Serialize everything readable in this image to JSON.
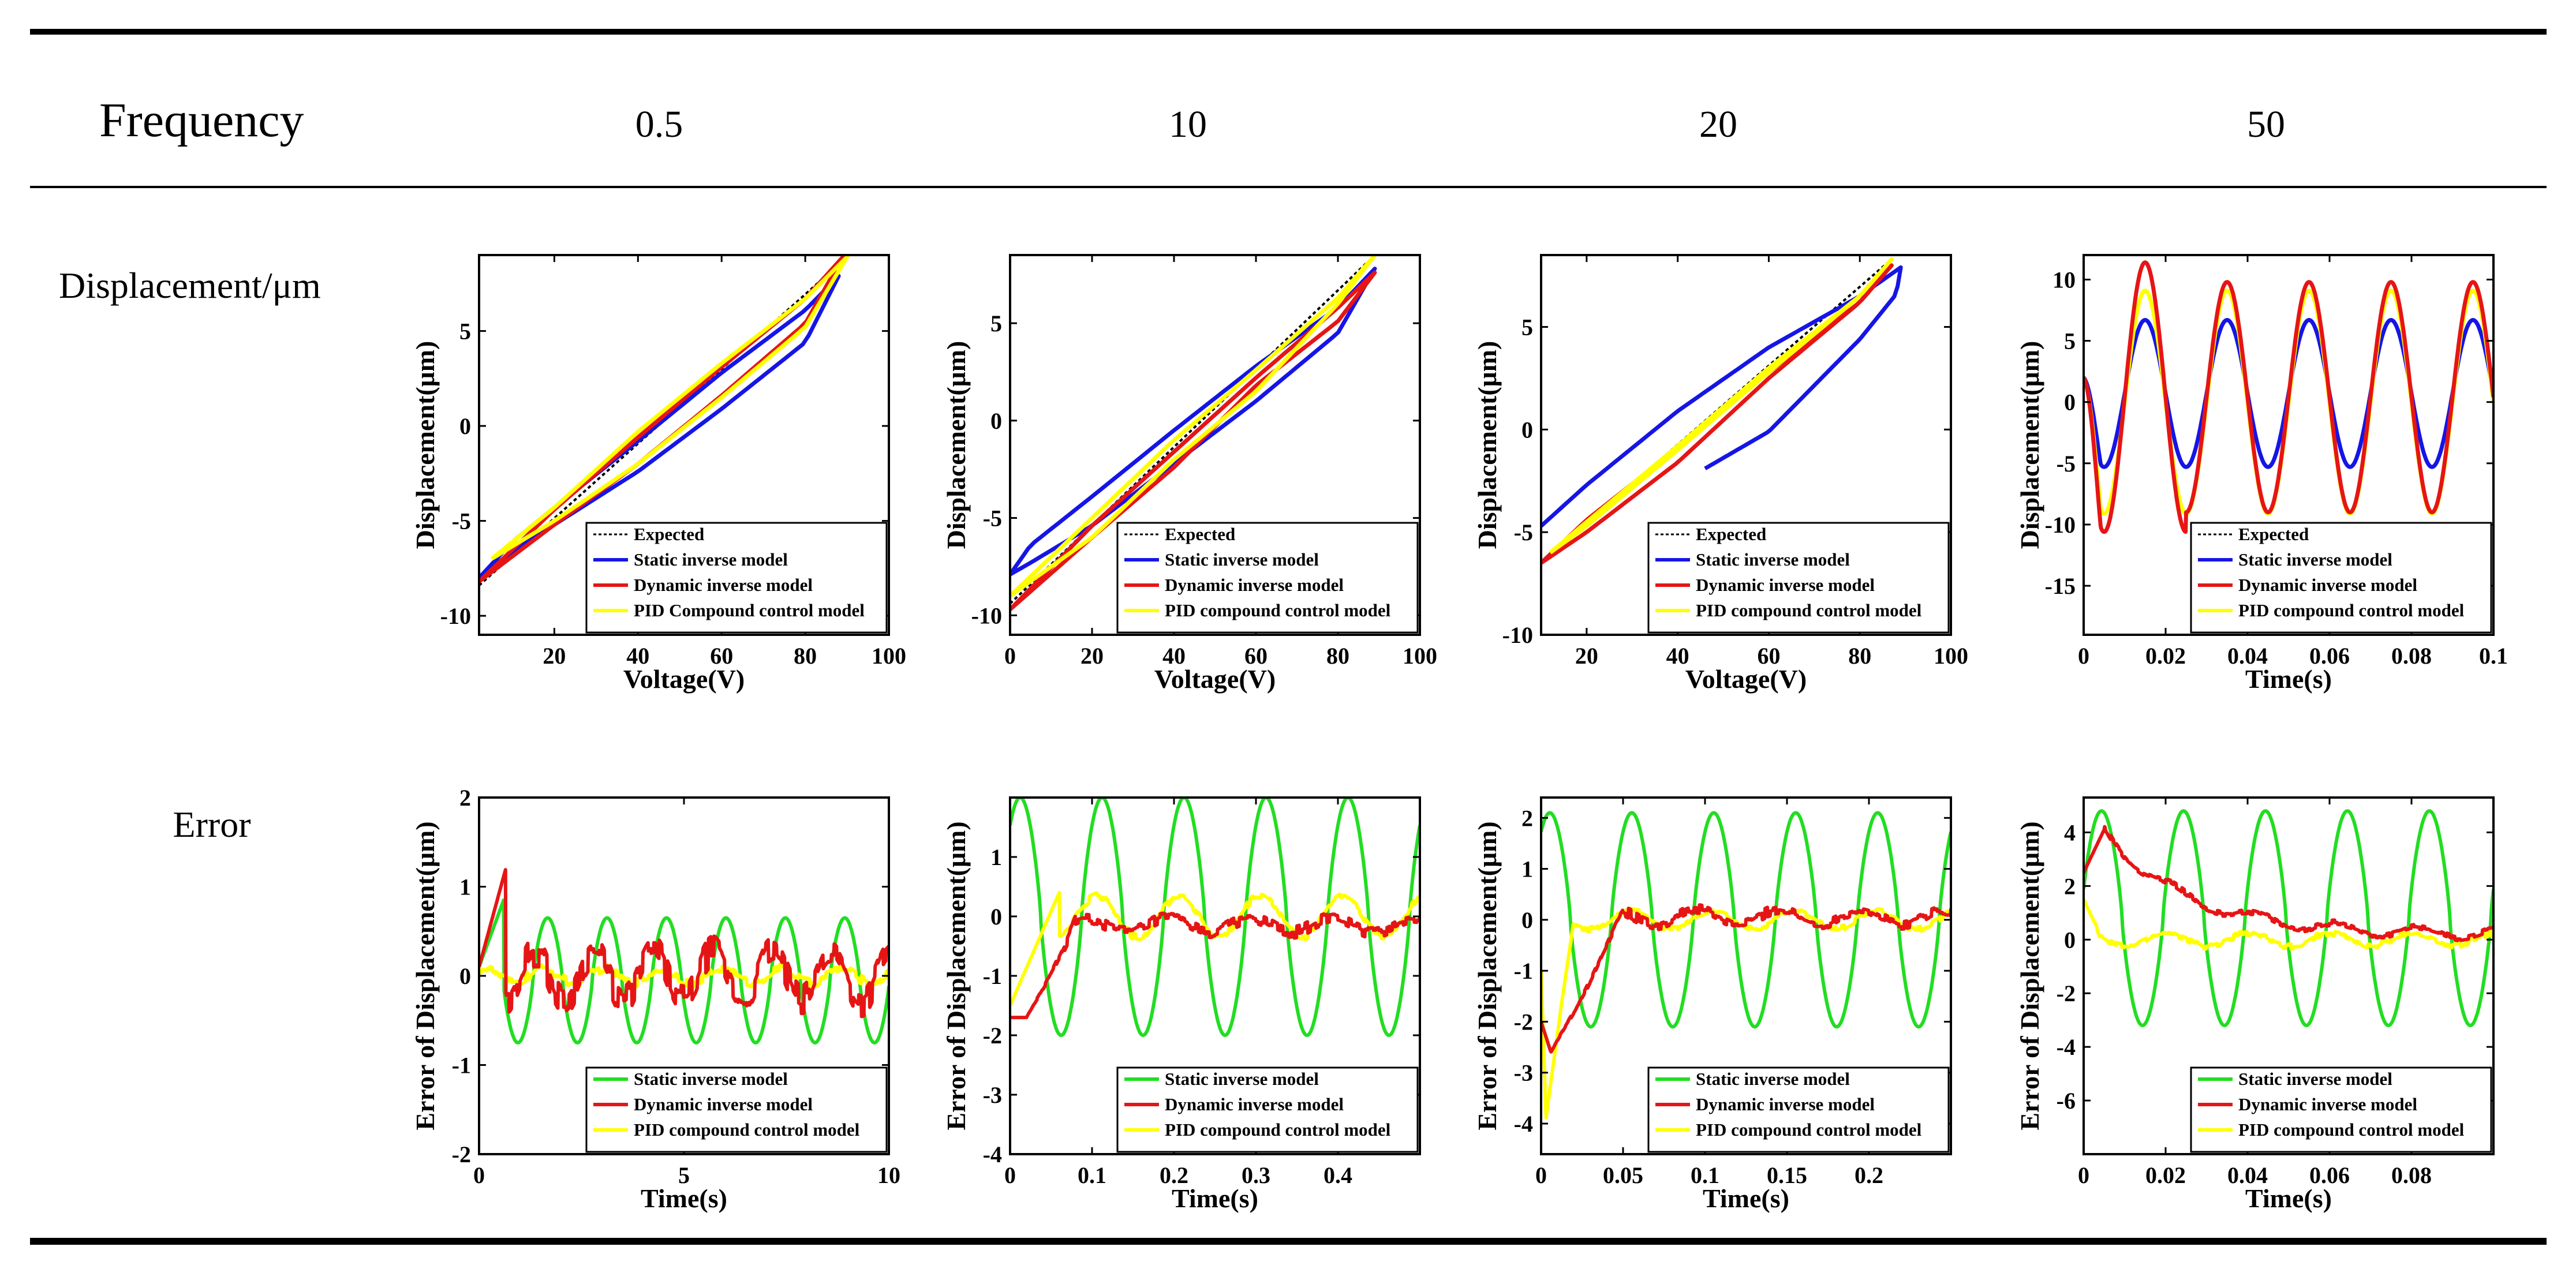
{
  "table": {
    "header_label": "Frequency",
    "frequencies": [
      "0.5",
      "10",
      "20",
      "50"
    ],
    "row_labels": {
      "displacement": "Displacement/μm",
      "error": "Error"
    }
  },
  "colors": {
    "expected": "#000000",
    "static": "#1515e6",
    "dynamic": "#e61515",
    "pid": "#ffff00",
    "static_error": "#22dd22"
  },
  "chart_data": [
    {
      "id": "disp-0.5",
      "type": "line",
      "mode": "hysteresis",
      "xlabel": "Voltage(V)",
      "ylabel": "Displacement(μm)",
      "xlim": [
        2,
        100
      ],
      "ylim": [
        -11,
        9
      ],
      "xticks": [
        "20",
        "40",
        "60",
        "80",
        "100"
      ],
      "xtick_values": [
        20,
        40,
        60,
        80,
        100
      ],
      "yticks": [
        "-10",
        "-5",
        "0",
        "5"
      ],
      "ytick_values": [
        -10,
        -5,
        0,
        5
      ],
      "legend": [
        "Expected",
        "Static inverse model",
        "Dynamic inverse model",
        "PID Compound control model"
      ],
      "legend_position": "bottom-right",
      "series": [
        {
          "name": "Expected",
          "key": "expected",
          "dashed": true,
          "x": [
            2,
            90
          ],
          "y": [
            -8.4,
            8.9
          ]
        },
        {
          "name": "Static inverse model",
          "key": "static",
          "loop_up_x": [
            2,
            10,
            20,
            40,
            60,
            80,
            88
          ],
          "loop_up_y": [
            -8.0,
            -6.6,
            -5.2,
            -2.4,
            0.9,
            4.4,
            7.9
          ],
          "loop_down_x": [
            88,
            80,
            60,
            40,
            20,
            10,
            2
          ],
          "loop_down_y": [
            7.9,
            6.1,
            2.8,
            -0.8,
            -4.3,
            -6.1,
            -8.0
          ]
        },
        {
          "name": "Dynamic inverse model",
          "key": "dynamic",
          "loop_up_x": [
            2,
            20,
            40,
            60,
            80,
            89
          ],
          "loop_up_y": [
            -8.2,
            -5.2,
            -2.0,
            1.6,
            5.4,
            8.9
          ],
          "loop_down_x": [
            89,
            80,
            60,
            40,
            20,
            2
          ],
          "loop_down_y": [
            8.9,
            6.7,
            3.1,
            -0.6,
            -4.4,
            -8.2
          ]
        },
        {
          "name": "PID Compound control model",
          "key": "pid",
          "loop_up_x": [
            5,
            20,
            40,
            60,
            80,
            90
          ],
          "loop_up_y": [
            -7.0,
            -5.0,
            -2.0,
            1.5,
            5.2,
            8.9
          ],
          "loop_down_x": [
            90,
            80,
            60,
            40,
            20,
            5
          ],
          "loop_down_y": [
            8.9,
            6.7,
            3.3,
            -0.3,
            -4.3,
            -7.0
          ]
        }
      ]
    },
    {
      "id": "disp-10",
      "type": "line",
      "mode": "hysteresis",
      "xlabel": "Voltage(V)",
      "ylabel": "Displacement(μm)",
      "xlim": [
        0,
        100
      ],
      "ylim": [
        -11,
        8.5
      ],
      "xticks": [
        "0",
        "20",
        "40",
        "60",
        "80",
        "100"
      ],
      "xtick_values": [
        0,
        20,
        40,
        60,
        80,
        100
      ],
      "yticks": [
        "-10",
        "-5",
        "0",
        "5"
      ],
      "ytick_values": [
        -10,
        -5,
        0,
        5
      ],
      "legend": [
        "Expected",
        "Static inverse model",
        "Dynamic inverse model",
        "PID compound control model"
      ],
      "legend_position": "bottom-right",
      "series": [
        {
          "name": "Expected",
          "key": "expected",
          "dashed": true,
          "x": [
            0,
            89
          ],
          "y": [
            -9.4,
            8.5
          ]
        },
        {
          "name": "Static inverse model",
          "key": "static",
          "loop_up_x": [
            0,
            5,
            20,
            40,
            60,
            80,
            89
          ],
          "loop_up_y": [
            -7.9,
            -6.4,
            -3.9,
            -0.5,
            2.8,
            5.8,
            7.8
          ],
          "loop_down_x": [
            89,
            80,
            60,
            40,
            20,
            5,
            0
          ],
          "loop_down_y": [
            7.8,
            4.5,
            1.0,
            -2.2,
            -5.4,
            -7.3,
            -7.9
          ]
        },
        {
          "name": "Dynamic inverse model",
          "key": "dynamic",
          "loop_up_x": [
            0,
            20,
            40,
            60,
            80,
            89
          ],
          "loop_up_y": [
            -9.7,
            -6.0,
            -2.4,
            1.8,
            5.1,
            7.6
          ],
          "loop_down_x": [
            89,
            80,
            60,
            40,
            20,
            0
          ],
          "loop_down_y": [
            7.6,
            5.8,
            2.2,
            -1.6,
            -5.4,
            -9.7
          ]
        },
        {
          "name": "PID compound control model",
          "key": "pid",
          "loop_up_x": [
            0,
            20,
            40,
            60,
            80,
            89
          ],
          "loop_up_y": [
            -9.0,
            -5.0,
            -1.0,
            2.6,
            6.3,
            8.5
          ],
          "loop_down_x": [
            89,
            80,
            60,
            40,
            20,
            0
          ],
          "loop_down_y": [
            8.5,
            6.0,
            1.5,
            -2.0,
            -6.0,
            -9.0
          ]
        }
      ]
    },
    {
      "id": "disp-20",
      "type": "line",
      "mode": "hysteresis",
      "xlabel": "Voltage(V)",
      "ylabel": "Displacement(μm)",
      "xlim": [
        10,
        100
      ],
      "ylim": [
        -10,
        8.5
      ],
      "xticks": [
        "20",
        "40",
        "60",
        "80",
        "100"
      ],
      "xtick_values": [
        20,
        40,
        60,
        80,
        100
      ],
      "yticks": [
        "-10",
        "-5",
        "0",
        "5"
      ],
      "ytick_values": [
        -10,
        -5,
        0,
        5
      ],
      "legend": [
        "Expected",
        "Static inverse model",
        "Dynamic inverse model",
        "PID compound control model"
      ],
      "legend_position": "bottom-right",
      "series": [
        {
          "name": "Expected",
          "key": "expected",
          "dashed": true,
          "x": [
            10,
            87
          ],
          "y": [
            -6.5,
            8.3
          ]
        },
        {
          "name": "Static inverse model",
          "key": "static",
          "loop_up_x": [
            10,
            20,
            40,
            60,
            80,
            89
          ],
          "loop_up_y": [
            -4.7,
            -2.7,
            0.9,
            4.0,
            6.5,
            7.9
          ],
          "loop_down_x": [
            89,
            88,
            80,
            60,
            46
          ],
          "loop_down_y": [
            7.9,
            6.6,
            4.4,
            -0.1,
            -1.9
          ]
        },
        {
          "name": "Dynamic inverse model",
          "key": "dynamic",
          "loop_up_x": [
            10,
            20,
            40,
            60,
            80,
            87
          ],
          "loop_up_y": [
            -6.5,
            -4.4,
            -0.9,
            2.8,
            6.2,
            8.0
          ],
          "loop_down_x": [
            87,
            80,
            60,
            40,
            20,
            10
          ],
          "loop_down_y": [
            8.0,
            6.2,
            2.5,
            -1.6,
            -5.0,
            -6.5
          ]
        },
        {
          "name": "PID compound control model",
          "key": "pid",
          "loop_up_x": [
            12,
            20,
            40,
            60,
            80,
            87
          ],
          "loop_up_y": [
            -6.0,
            -4.5,
            -0.8,
            3.0,
            6.5,
            8.3
          ],
          "loop_down_x": [
            87,
            80,
            60,
            40,
            20,
            12
          ],
          "loop_down_y": [
            8.3,
            6.5,
            2.8,
            -1.0,
            -4.7,
            -6.0
          ]
        }
      ]
    },
    {
      "id": "disp-50",
      "type": "line",
      "mode": "sine",
      "xlabel": "Time(s)",
      "ylabel": "Displacement(μm)",
      "xlim": [
        0,
        0.1
      ],
      "ylim": [
        -19,
        12
      ],
      "xticks": [
        "0",
        "0.02",
        "0.04",
        "0.06",
        "0.08",
        "0.1"
      ],
      "xtick_values": [
        0,
        0.02,
        0.04,
        0.06,
        0.08,
        0.1
      ],
      "yticks": [
        "-15",
        "-10",
        "-5",
        "0",
        "5",
        "10"
      ],
      "ytick_values": [
        -15,
        -10,
        -5,
        0,
        5,
        10
      ],
      "legend": [
        "Expected",
        "Static inverse model",
        "Dynamic inverse model",
        "PID compound control model"
      ],
      "legend_position": "bottom-right",
      "period": 0.02,
      "first_peak": 0.015,
      "series": [
        {
          "name": "Expected",
          "key": "expected",
          "dashed": true,
          "offset": 0,
          "amplitude": 9,
          "start": 2
        },
        {
          "name": "Static inverse model",
          "key": "static",
          "offset": 0.7,
          "amplitude": 6,
          "start": 2
        },
        {
          "name": "Dynamic inverse model",
          "key": "dynamic",
          "offset": 0.4,
          "amplitude": 9.4,
          "first_amplitude": 11,
          "start": 2
        },
        {
          "name": "PID compound control model",
          "key": "pid",
          "offset": 0,
          "amplitude": 9.1,
          "start": 2
        }
      ]
    },
    {
      "id": "err-0.5",
      "type": "line",
      "mode": "error",
      "xlabel": "Time(s)",
      "ylabel": "Error of Displacement(μm)",
      "xlim": [
        0,
        10
      ],
      "ylim": [
        -2,
        2
      ],
      "xticks": [
        "0",
        "5",
        "10"
      ],
      "xtick_values": [
        0,
        5,
        10
      ],
      "yticks": [
        "-2",
        "-1",
        "0",
        "1",
        "2"
      ],
      "ytick_values": [
        -2,
        -1,
        0,
        1,
        2
      ],
      "legend": [
        "Static inverse model",
        "Dynamic inverse model",
        "PID compound control model"
      ],
      "legend_position": "bottom-right",
      "period": 1.45,
      "series": [
        {
          "name": "Static inverse model",
          "key": "static_error",
          "shape": "sine",
          "amplitude": 0.7,
          "offset": -0.05,
          "phase": 0.6,
          "t0": 0.3,
          "init_value": 0.1,
          "init_peak": 0.85,
          "init_peak_t": 0.6
        },
        {
          "name": "Dynamic inverse model",
          "key": "dynamic",
          "shape": "noisy",
          "amplitude": 0.28,
          "offset": 0.0,
          "phase": 2.0,
          "noise": 0.18,
          "t0": 0.2,
          "init_value": 0.1,
          "init_peak": 1.2,
          "init_peak_t": 0.65
        },
        {
          "name": "PID compound control model",
          "key": "pid",
          "shape": "noisy",
          "amplitude": 0.08,
          "offset": 0.0,
          "phase": 1.0,
          "noise": 0.05,
          "t0": 0.0,
          "init_value": 0.15,
          "init_peak": 0.15,
          "init_peak_t": 0.0
        }
      ]
    },
    {
      "id": "err-10",
      "type": "line",
      "mode": "error",
      "xlabel": "Time(s)",
      "ylabel": "Error of Displacement(μm)",
      "xlim": [
        0,
        0.5
      ],
      "ylim": [
        -4,
        2
      ],
      "xticks": [
        "0",
        "0.1",
        "0.2",
        "0.3",
        "0.4"
      ],
      "xtick_values": [
        0,
        0.1,
        0.2,
        0.3,
        0.4
      ],
      "yticks": [
        "-4",
        "-3",
        "-2",
        "-1",
        "0",
        "1"
      ],
      "ytick_values": [
        -4,
        -3,
        -2,
        -1,
        0,
        1
      ],
      "legend": [
        "Static inverse model",
        "Dynamic inverse model",
        "PID compound control model"
      ],
      "legend_position": "bottom-right",
      "period": 0.1,
      "series": [
        {
          "name": "Static inverse model",
          "key": "static_error",
          "shape": "sine",
          "amplitude": 2.0,
          "offset": 0.0,
          "phase": 0.8,
          "t0": 0.0,
          "init_value": -1.2,
          "init_peak": -1.2,
          "init_peak_t": 0.0
        },
        {
          "name": "Dynamic inverse model",
          "key": "dynamic",
          "shape": "noisy",
          "amplitude": 0.12,
          "offset": -0.15,
          "phase": 2.0,
          "noise": 0.1,
          "t0": 0.08,
          "init_value": -1.7,
          "init_peak": -1.7,
          "init_peak_t": 0.02
        },
        {
          "name": "PID compound control model",
          "key": "pid",
          "shape": "noisy",
          "amplitude": 0.35,
          "offset": 0.0,
          "phase": 1.2,
          "noise": 0.06,
          "t0": 0.05,
          "init_value": -1.5,
          "init_peak": 0.4,
          "init_peak_t": 0.06
        }
      ]
    },
    {
      "id": "err-20",
      "type": "line",
      "mode": "error",
      "xlabel": "Time(s)",
      "ylabel": "Error of Displacement(μm)",
      "xlim": [
        0,
        0.25
      ],
      "ylim": [
        -4.6,
        2.4
      ],
      "xticks": [
        "0",
        "0.05",
        "0.1",
        "0.15",
        "0.2"
      ],
      "xtick_values": [
        0,
        0.05,
        0.1,
        0.15,
        0.2
      ],
      "yticks": [
        "-4",
        "-3",
        "-2",
        "-1",
        "0",
        "1",
        "2"
      ],
      "ytick_values": [
        -4,
        -3,
        -2,
        -1,
        0,
        1,
        2
      ],
      "legend": [
        "Static inverse model",
        "Dynamic inverse model",
        "PID compound control model"
      ],
      "legend_position": "bottom-right",
      "period": 0.05,
      "series": [
        {
          "name": "Static inverse model",
          "key": "static_error",
          "shape": "sine",
          "amplitude": 2.1,
          "offset": 0.0,
          "phase": 0.9,
          "t0": 0.0,
          "init_value": -1.2,
          "init_peak": -1.2,
          "init_peak_t": 0.0
        },
        {
          "name": "Dynamic inverse model",
          "key": "dynamic",
          "shape": "noisy",
          "amplitude": 0.15,
          "offset": 0.05,
          "phase": 2.2,
          "noise": 0.1,
          "t0": 0.05,
          "init_value": -2.0,
          "init_peak": -2.6,
          "init_peak_t": 0.006
        },
        {
          "name": "PID compound control model",
          "key": "pid",
          "shape": "noisy",
          "amplitude": 0.18,
          "offset": 0.0,
          "phase": 1.0,
          "noise": 0.05,
          "t0": 0.02,
          "init_value": -1.0,
          "init_peak": -3.9,
          "init_peak_t": 0.003
        }
      ]
    },
    {
      "id": "err-50",
      "type": "line",
      "mode": "error",
      "xlabel": "Time(s)",
      "ylabel": "Error of Displacement(μm)",
      "xlim": [
        0,
        0.1
      ],
      "ylim": [
        -8,
        5.3
      ],
      "xticks": [
        "0",
        "0.02",
        "0.04",
        "0.06",
        "0.08"
      ],
      "xtick_values": [
        0,
        0.02,
        0.04,
        0.06,
        0.08
      ],
      "yticks": [
        "-6",
        "-4",
        "-2",
        "0",
        "2",
        "4"
      ],
      "ytick_values": [
        -6,
        -4,
        -2,
        0,
        2,
        4
      ],
      "legend": [
        "Static inverse model",
        "Dynamic inverse model",
        "PID compound control model"
      ],
      "legend_position": "bottom-right",
      "period": 0.02,
      "series": [
        {
          "name": "Static inverse model",
          "key": "static_error",
          "shape": "sine",
          "amplitude": 4.0,
          "offset": 0.8,
          "phase": 0.2,
          "t0": 0.0,
          "init_value": 2.0,
          "init_peak": 2.0,
          "init_peak_t": 0.0
        },
        {
          "name": "Dynamic inverse model",
          "key": "dynamic",
          "shape": "decay",
          "amplitude": 0.2,
          "offset": 0.2,
          "phase": 1.0,
          "noise": 0.1,
          "decay_start": 4.1,
          "decay_tau": 0.02,
          "t0": 0.0,
          "init_value": 2.5,
          "init_peak": 4.1,
          "init_peak_t": 0.005
        },
        {
          "name": "PID compound control model",
          "key": "pid",
          "shape": "noisy",
          "amplitude": 0.25,
          "offset": 0.0,
          "phase": 1.5,
          "noise": 0.1,
          "t0": 0.004,
          "init_value": 1.5,
          "init_peak": 1.5,
          "init_peak_t": 0.0
        }
      ]
    }
  ]
}
